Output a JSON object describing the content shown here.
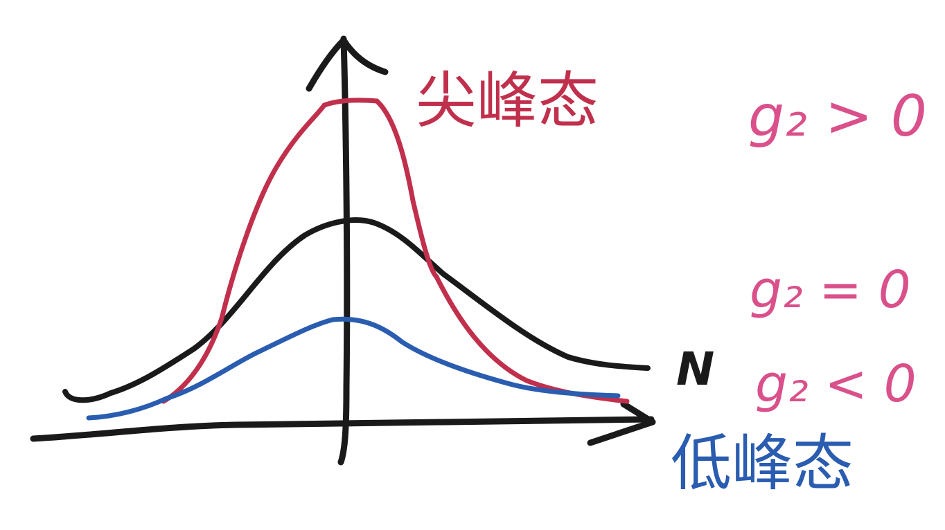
{
  "labels": {
    "axis_n": "N",
    "leptokurtic": "尖峰态",
    "platykurtic": "低峰态",
    "g2_positive": "g₂ > 0",
    "g2_zero": "g₂ = 0",
    "g2_negative": "g₂ < 0"
  },
  "colors": {
    "ink": "#1a1a1a",
    "red_curve": "#c0304c",
    "blue_curve": "#2a5cb0",
    "pink_text": "#d9508a",
    "red_text": "#c0304c",
    "blue_text": "#2a5cb0"
  },
  "curves": [
    {
      "id": "black",
      "meaning": "g2_zero",
      "color_key": "ink"
    },
    {
      "id": "red",
      "meaning": "g2_positive",
      "color_key": "red_curve"
    },
    {
      "id": "blue",
      "meaning": "g2_negative",
      "color_key": "blue_curve"
    }
  ]
}
